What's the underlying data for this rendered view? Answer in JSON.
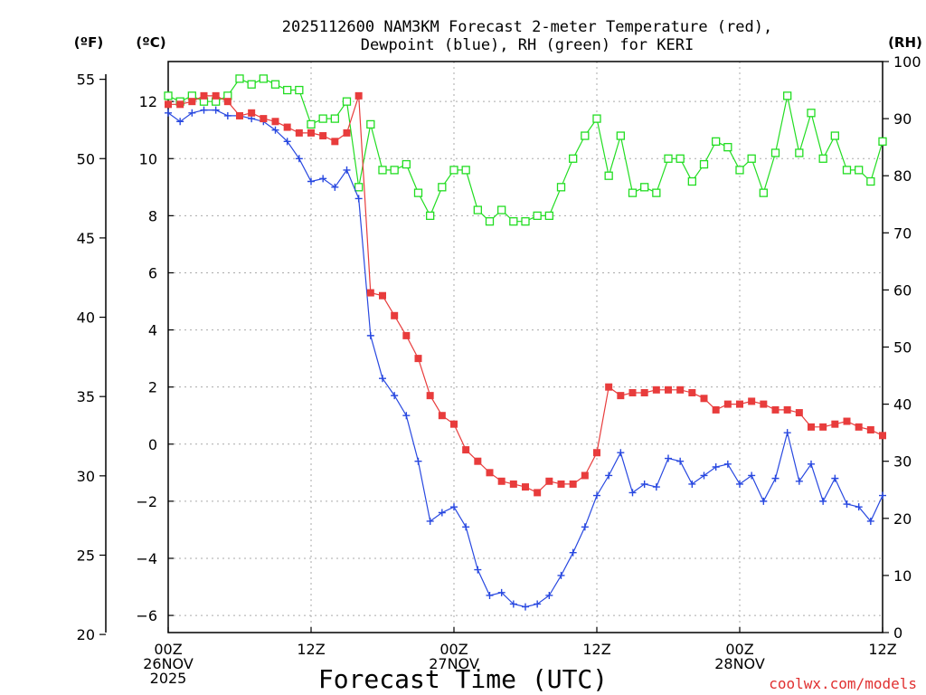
{
  "chart_data": {
    "type": "line",
    "title_lines": [
      "2025112600 NAM3KM Forecast 2-meter Temperature (red),",
      "Dewpoint (blue), RH (green) for KERI"
    ],
    "unit_labels": {
      "fahrenheit": "(ºF)",
      "celsius": "(ºC)",
      "rh": "(RH)"
    },
    "xlabel": "Forecast Time (UTC)",
    "credit": "coolwx.com/models",
    "x_range_hours": [
      0,
      60
    ],
    "x_ticks": [
      {
        "hour": 0,
        "lines": [
          "00Z",
          "26NOV",
          "2025"
        ]
      },
      {
        "hour": 12,
        "lines": [
          "12Z"
        ]
      },
      {
        "hour": 24,
        "lines": [
          "00Z",
          "27NOV"
        ]
      },
      {
        "hour": 36,
        "lines": [
          "12Z"
        ]
      },
      {
        "hour": 48,
        "lines": [
          "00Z",
          "28NOV"
        ]
      },
      {
        "hour": 60,
        "lines": [
          "12Z"
        ]
      }
    ],
    "celsius_axis": {
      "range": [
        -6.6,
        13.4
      ],
      "ticks": [
        "12",
        "10",
        "8",
        "6",
        "4",
        "2",
        "0",
        "−2",
        "−4",
        "−6"
      ],
      "tick_values": [
        12,
        10,
        8,
        6,
        4,
        2,
        0,
        -2,
        -4,
        -6
      ]
    },
    "fahrenheit_axis": {
      "ticks": [
        "55",
        "50",
        "45",
        "40",
        "35",
        "30",
        "25",
        "20"
      ],
      "tick_values": [
        55,
        50,
        45,
        40,
        35,
        30,
        25,
        20
      ]
    },
    "rh_axis": {
      "range": [
        0,
        100
      ],
      "ticks": [
        "100",
        "90",
        "80",
        "70",
        "60",
        "50",
        "40",
        "30",
        "20",
        "10",
        "0"
      ],
      "tick_values": [
        100,
        90,
        80,
        70,
        60,
        50,
        40,
        30,
        20,
        10,
        0
      ]
    },
    "hours": [
      0,
      1,
      2,
      3,
      4,
      5,
      6,
      7,
      8,
      9,
      10,
      11,
      12,
      13,
      14,
      15,
      16,
      17,
      18,
      19,
      20,
      21,
      22,
      23,
      24,
      25,
      26,
      27,
      28,
      29,
      30,
      31,
      32,
      33,
      34,
      35,
      36,
      37,
      38,
      39,
      40,
      41,
      42,
      43,
      44,
      45,
      46,
      47,
      48,
      49,
      50,
      51,
      52,
      53,
      54,
      55,
      56,
      57,
      58,
      59,
      60
    ],
    "series": [
      {
        "name": "Temperature (red)",
        "color": "#e83c3c",
        "marker": "filled-square",
        "axis": "celsius",
        "values": [
          11.9,
          11.9,
          12.0,
          12.2,
          12.2,
          12.0,
          11.5,
          11.6,
          11.4,
          11.3,
          11.1,
          10.9,
          10.9,
          10.8,
          10.6,
          10.9,
          12.2,
          5.3,
          5.2,
          4.5,
          3.8,
          3.0,
          1.7,
          1.0,
          0.7,
          -0.2,
          -0.6,
          -1.0,
          -1.3,
          -1.4,
          -1.5,
          -1.7,
          -1.3,
          -1.4,
          -1.4,
          -1.1,
          -0.3,
          2.0,
          1.7,
          1.8,
          1.8,
          1.9,
          1.9,
          1.9,
          1.8,
          1.6,
          1.2,
          1.4,
          1.4,
          1.5,
          1.4,
          1.2,
          1.2,
          1.1,
          0.6,
          0.6,
          0.7,
          0.8,
          0.6,
          0.5,
          0.3
        ]
      },
      {
        "name": "Dewpoint (blue)",
        "color": "#2848e0",
        "marker": "plus",
        "axis": "celsius",
        "values": [
          11.6,
          11.3,
          11.6,
          11.7,
          11.7,
          11.5,
          11.5,
          11.4,
          11.3,
          11.0,
          10.6,
          10.0,
          9.2,
          9.3,
          9.0,
          9.6,
          8.6,
          3.8,
          2.3,
          1.7,
          1.0,
          -0.6,
          -2.7,
          -2.4,
          -2.2,
          -2.9,
          -4.4,
          -5.3,
          -5.2,
          -5.6,
          -5.7,
          -5.6,
          -5.3,
          -4.6,
          -3.8,
          -2.9,
          -1.8,
          -1.1,
          -0.3,
          -1.7,
          -1.4,
          -1.5,
          -0.5,
          -0.6,
          -1.4,
          -1.1,
          -0.8,
          -0.7,
          -1.4,
          -1.1,
          -2.0,
          -1.2,
          0.4,
          -1.3,
          -0.7,
          -2.0,
          -1.2,
          -2.1,
          -2.2,
          -2.7,
          -1.8
        ]
      },
      {
        "name": "RH (green)",
        "color": "#22dd22",
        "marker": "open-square",
        "axis": "rh",
        "values": [
          94,
          93,
          94,
          93,
          93,
          94,
          97,
          96,
          97,
          96,
          95,
          95,
          89,
          90,
          90,
          93,
          78,
          89,
          81,
          81,
          82,
          77,
          73,
          78,
          81,
          81,
          74,
          72,
          74,
          72,
          72,
          73,
          73,
          78,
          83,
          87,
          90,
          80,
          87,
          77,
          78,
          77,
          83,
          83,
          79,
          82,
          86,
          85,
          81,
          83,
          77,
          84,
          94,
          84,
          91,
          83,
          87,
          81,
          81,
          79,
          86
        ]
      }
    ]
  }
}
